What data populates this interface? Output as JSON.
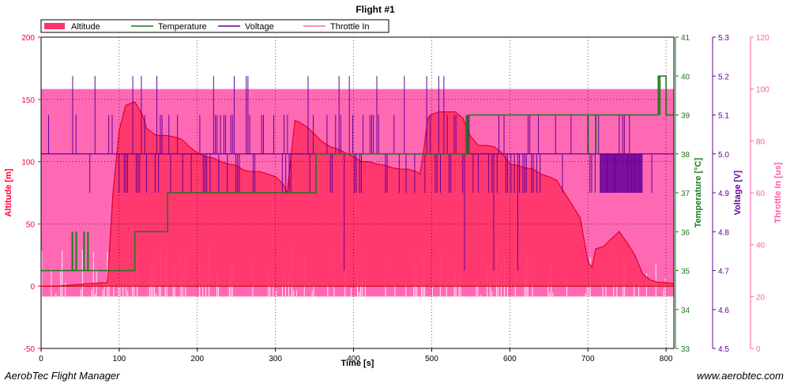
{
  "footer": {
    "left": "AerobTec Flight Manager",
    "right": "www.aerobtec.com"
  },
  "colors": {
    "altitude": "#ff0033",
    "altitude_fill": "#ff3366",
    "temperature": "#1a7a1a",
    "voltage": "#660099",
    "throttle": "#ff66b3",
    "throttle_band": "#ff69b4"
  },
  "chart_data": {
    "type": "line",
    "title": "Flight #1",
    "xlabel": "Time [s]",
    "xlim": [
      0,
      810
    ],
    "x_ticks": [
      0,
      100,
      200,
      300,
      400,
      500,
      600,
      700,
      800
    ],
    "grid": true,
    "legend_position": "top-left",
    "axes": {
      "altitude": {
        "label": "Altitude [m]",
        "range": [
          -50,
          200
        ],
        "ticks": [
          -50,
          0,
          50,
          100,
          150,
          200
        ]
      },
      "temperature": {
        "label": "Temperature [°C]",
        "range": [
          33,
          41
        ],
        "ticks": [
          33,
          34,
          35,
          36,
          37,
          38,
          39,
          40,
          41
        ]
      },
      "voltage": {
        "label": "Voltage  [V]",
        "range": [
          4.5,
          5.3
        ],
        "ticks": [
          "4.5",
          "4.6",
          "4.7",
          "4.8",
          "4.9",
          "5.0",
          "5.1",
          "5.2",
          "5.3"
        ]
      },
      "throttle": {
        "label": "Throttle In  [us]",
        "range": [
          0,
          120
        ],
        "ticks": [
          0,
          20,
          40,
          60,
          80,
          100,
          120
        ]
      }
    },
    "series": [
      {
        "name": "Altitude",
        "axis": "altitude",
        "x": [
          0,
          20,
          40,
          60,
          85,
          92,
          100,
          108,
          115,
          120,
          125,
          130,
          135,
          145,
          150,
          160,
          170,
          180,
          190,
          200,
          210,
          220,
          230,
          240,
          250,
          260,
          270,
          280,
          290,
          300,
          310,
          315,
          320,
          325,
          330,
          340,
          350,
          360,
          370,
          380,
          390,
          400,
          410,
          420,
          430,
          440,
          450,
          460,
          470,
          480,
          485,
          490,
          495,
          500,
          510,
          520,
          530,
          540,
          550,
          560,
          570,
          580,
          590,
          600,
          610,
          620,
          630,
          640,
          650,
          660,
          670,
          680,
          690,
          700,
          705,
          710,
          720,
          730,
          740,
          750,
          760,
          770,
          780,
          790,
          800,
          810
        ],
        "y": [
          0,
          0,
          1,
          2,
          3,
          75,
          125,
          145,
          147,
          148,
          143,
          137,
          127,
          122,
          121,
          121,
          120,
          118,
          112,
          107,
          104,
          103,
          100,
          98,
          97,
          93,
          92,
          92,
          90,
          88,
          82,
          75,
          105,
          133,
          132,
          128,
          122,
          116,
          112,
          110,
          107,
          104,
          100,
          100,
          98,
          97,
          95,
          94,
          94,
          92,
          90,
          110,
          135,
          138,
          140,
          140,
          140,
          135,
          120,
          113,
          113,
          112,
          107,
          98,
          97,
          95,
          94,
          90,
          88,
          85,
          75,
          65,
          55,
          20,
          15,
          30,
          32,
          38,
          44,
          35,
          25,
          10,
          5,
          3,
          3,
          2
        ]
      },
      {
        "name": "Temperature",
        "axis": "temperature",
        "steps": [
          [
            0,
            35
          ],
          [
            87,
            35
          ],
          [
            87,
            35.0
          ],
          [
            120,
            35.0
          ],
          [
            120,
            36
          ],
          [
            162,
            36
          ],
          [
            162,
            37
          ],
          [
            352,
            37
          ],
          [
            352,
            38
          ],
          [
            548,
            38
          ],
          [
            548,
            39
          ],
          [
            790,
            39
          ],
          [
            790,
            40
          ],
          [
            800,
            40
          ],
          [
            800,
            39
          ],
          [
            810,
            39
          ]
        ]
      },
      {
        "name": "Voltage",
        "axis": "voltage",
        "baseline": 5.0,
        "typical_range": [
          4.9,
          5.1
        ],
        "spike_range": [
          4.7,
          5.2
        ]
      },
      {
        "name": "Throttle In",
        "axis": "throttle",
        "band": [
          20,
          100
        ],
        "typical_range": [
          10,
          40
        ]
      }
    ]
  }
}
